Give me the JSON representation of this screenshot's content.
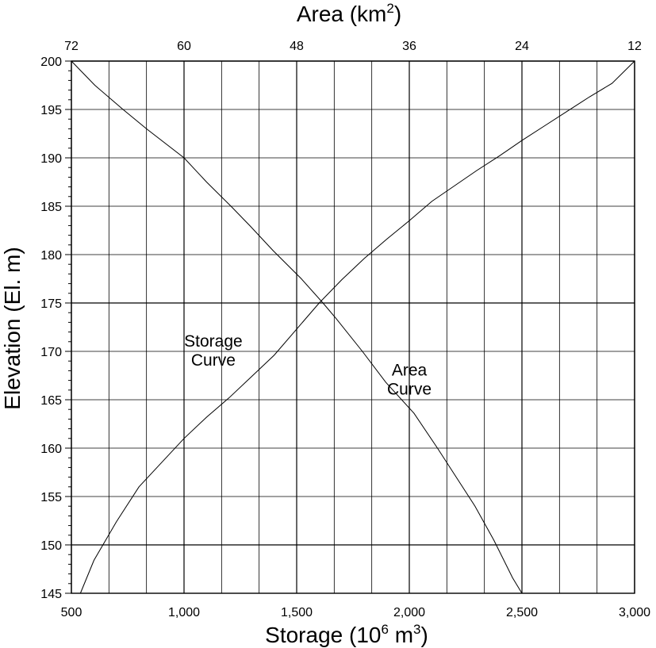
{
  "chart_data": {
    "type": "line",
    "title_top": "Area (km",
    "title_top_sup": "2",
    "title_top_close": ")",
    "xlabel_prefix": "Storage (10",
    "xlabel_sup": "6",
    "xlabel_mid": " m",
    "xlabel_sup2": "3",
    "xlabel_close": ")",
    "ylabel": "Elevation (El. m)",
    "x_bottom": {
      "min": 500,
      "max": 3000,
      "ticks": [
        500,
        1000,
        1500,
        2000,
        2500,
        3000
      ],
      "tick_labels": [
        "500",
        "1,000",
        "1,500",
        "2,000",
        "2,500",
        "3,000"
      ]
    },
    "x_top": {
      "min": 72,
      "max": 12,
      "reversed": true,
      "ticks": [
        72,
        60,
        48,
        36,
        24,
        12
      ],
      "tick_labels": [
        "72",
        "60",
        "48",
        "36",
        "24",
        "12"
      ]
    },
    "y": {
      "min": 145,
      "max": 200,
      "ticks": [
        145,
        150,
        155,
        160,
        165,
        170,
        175,
        180,
        185,
        190,
        195,
        200
      ],
      "tick_labels": [
        "145",
        "150",
        "155",
        "160",
        "165",
        "170",
        "175",
        "180",
        "185",
        "190",
        "195",
        "200"
      ]
    },
    "grid": true,
    "series": [
      {
        "name": "Storage Curve",
        "x_axis": "bottom",
        "x": [
          540,
          600,
          700,
          800,
          900,
          1000,
          1100,
          1200,
          1300,
          1400,
          1500,
          1600,
          1700,
          1800,
          1900,
          2000,
          2100,
          2200,
          2300,
          2400,
          2500,
          2600,
          2700,
          2800,
          2900,
          3000
        ],
        "y": [
          145,
          148.4,
          152.4,
          156,
          158.5,
          161,
          163.2,
          165.2,
          167.4,
          169.6,
          172.3,
          175,
          177.4,
          179.6,
          181.6,
          183.5,
          185.5,
          187.1,
          188.7,
          190.2,
          191.8,
          193.3,
          194.8,
          196.3,
          197.7,
          200
        ]
      },
      {
        "name": "Area Curve",
        "x_axis": "top",
        "x": [
          72,
          69.5,
          66.5,
          64,
          60,
          57.6,
          55,
          53,
          50.5,
          47.5,
          45.2,
          43.8,
          41,
          38.5,
          35.5,
          33,
          31,
          29,
          27,
          25,
          24
        ],
        "y": [
          200,
          197.5,
          195,
          193,
          190,
          187.5,
          185,
          183,
          180.4,
          177.5,
          175,
          173.4,
          170,
          166.8,
          163.6,
          160,
          157,
          154,
          150.5,
          146.6,
          145
        ]
      }
    ],
    "annotations": [
      {
        "text": [
          "Storage",
          "Curve"
        ],
        "x": 1130,
        "y": 170.5,
        "axis": "bottom"
      },
      {
        "text": [
          "Area",
          "Curve"
        ],
        "x": 2000,
        "y": 167.5,
        "axis": "bottom"
      }
    ]
  }
}
